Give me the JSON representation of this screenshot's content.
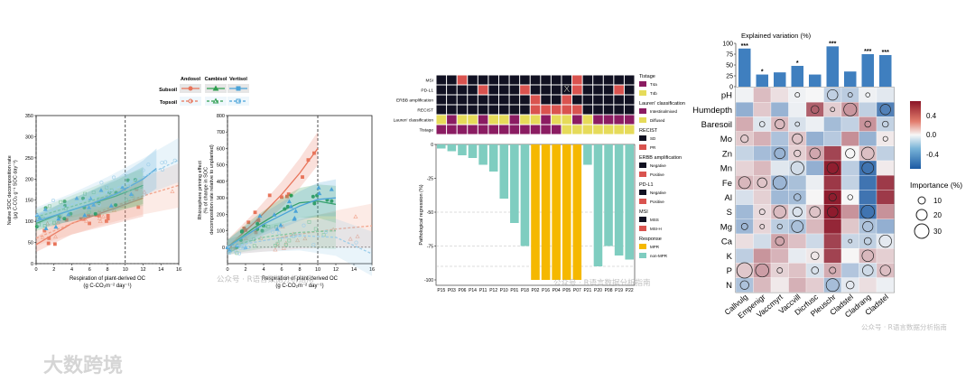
{
  "watermarks": {
    "wechat": "公众号 · R语言数据分析指南",
    "brand": "大数跨境"
  },
  "chart_data": [
    {
      "type": "scatter",
      "id": "soc_decomposition",
      "ylabel_lines": [
        "Native SOC decomposition rate",
        "(μg C-CO₂ g⁻¹ SOC day⁻¹)"
      ],
      "xlabel_lines": [
        "Respiration of plant-derived OC",
        "(g C-CO₂m⁻² day⁻¹)"
      ],
      "xlim": [
        0,
        16
      ],
      "ylim": [
        0,
        350
      ],
      "xticks": [
        "0",
        "2",
        "4",
        "6",
        "8",
        "10",
        "12",
        "14",
        "16"
      ],
      "yticks": [
        "0",
        "50",
        "100",
        "150",
        "200",
        "250",
        "300",
        "350"
      ],
      "vlines": [
        0,
        10
      ],
      "legend": {
        "columns": [
          "Andosol",
          "Cambisol",
          "Vertisol"
        ],
        "rows": [
          "Subsoil",
          "Topsoil"
        ],
        "colors": [
          "#e8745a",
          "#2e9e4f",
          "#4aa3d8"
        ]
      },
      "series": [
        {
          "name": "Andosol Subsoil",
          "color": "#e8745a",
          "fit": [
            [
              0,
              45
            ],
            [
              2,
              70
            ],
            [
              4,
              95
            ],
            [
              6,
              110
            ],
            [
              8,
              125
            ],
            [
              10,
              140
            ],
            [
              12,
              155
            ]
          ]
        },
        {
          "name": "Andosol Topsoil",
          "color": "#f2a48c",
          "fit": [
            [
              0,
              60
            ],
            [
              4,
              95
            ],
            [
              8,
              130
            ],
            [
              12,
              160
            ],
            [
              16,
              185
            ]
          ]
        },
        {
          "name": "Cambisol Subsoil",
          "color": "#2e9e4f",
          "fit": [
            [
              0,
              95
            ],
            [
              3,
              120
            ],
            [
              6,
              140
            ],
            [
              9,
              160
            ],
            [
              12,
              185
            ]
          ]
        },
        {
          "name": "Cambisol Topsoil",
          "color": "#7cc48a",
          "fit": [
            [
              0,
              110
            ],
            [
              4,
              135
            ],
            [
              8,
              160
            ],
            [
              12,
              180
            ]
          ]
        },
        {
          "name": "Vertisol Subsoil",
          "color": "#4aa3d8",
          "fit": [
            [
              0,
              100
            ],
            [
              3,
              120
            ],
            [
              6,
              140
            ],
            [
              9,
              165
            ],
            [
              12,
              200
            ],
            [
              13.5,
              225
            ]
          ]
        },
        {
          "name": "Vertisol Topsoil",
          "color": "#9ccde9",
          "fit": [
            [
              0,
              115
            ],
            [
              4,
              140
            ],
            [
              8,
              170
            ],
            [
              12,
              205
            ],
            [
              16,
              245
            ]
          ]
        }
      ]
    },
    {
      "type": "scatter",
      "id": "rhizosphere_priming",
      "ylabel_lines": [
        "Rhizosphere priming effect",
        "(% of change in SOC",
        "decomposition rate relative to unplanted)"
      ],
      "xlabel_lines": [
        "Respiration of plant-derived OC",
        "(g C-CO₂m⁻² day⁻¹)"
      ],
      "xlim": [
        0,
        16
      ],
      "ylim": [
        -100,
        800
      ],
      "xticks": [
        "0",
        "2",
        "4",
        "6",
        "8",
        "10",
        "12",
        "14",
        "16"
      ],
      "yticks": [
        "0",
        "100",
        "200",
        "300",
        "400",
        "500",
        "600",
        "700",
        "800"
      ],
      "vlines": [
        0,
        10
      ],
      "series": [
        {
          "name": "Andosol Subsoil",
          "color": "#e8745a",
          "fit": [
            [
              0,
              0
            ],
            [
              3,
              150
            ],
            [
              6,
              320
            ],
            [
              8,
              450
            ],
            [
              10,
              600
            ]
          ]
        },
        {
          "name": "Andosol Topsoil",
          "color": "#f2a48c",
          "fit": [
            [
              0,
              0
            ],
            [
              4,
              40
            ],
            [
              8,
              80
            ],
            [
              12,
              110
            ],
            [
              16,
              130
            ]
          ]
        },
        {
          "name": "Cambisol Subsoil",
          "color": "#2e9e4f",
          "fit": [
            [
              0,
              0
            ],
            [
              3,
              120
            ],
            [
              6,
              220
            ],
            [
              8,
              270
            ],
            [
              10,
              280
            ],
            [
              12,
              260
            ]
          ]
        },
        {
          "name": "Cambisol Topsoil",
          "color": "#7cc48a",
          "fit": [
            [
              0,
              0
            ],
            [
              4,
              60
            ],
            [
              8,
              90
            ],
            [
              12,
              100
            ]
          ]
        },
        {
          "name": "Vertisol Subsoil",
          "color": "#4aa3d8",
          "fit": [
            [
              0,
              0
            ],
            [
              4,
              140
            ],
            [
              8,
              250
            ],
            [
              10,
              290
            ],
            [
              12,
              300
            ]
          ]
        },
        {
          "name": "Vertisol Topsoil",
          "color": "#9ccde9",
          "fit": [
            [
              0,
              0
            ],
            [
              4,
              40
            ],
            [
              8,
              70
            ],
            [
              12,
              60
            ],
            [
              16,
              -40
            ]
          ]
        }
      ]
    },
    {
      "type": "bar",
      "id": "pathological_regression",
      "ylabel": "Pathological regression (%)",
      "categories": [
        "P15",
        "P03",
        "P06",
        "P14",
        "P11",
        "P12",
        "P10",
        "P01",
        "P18",
        "P02",
        "P16",
        "P04",
        "P05",
        "P07",
        "P21",
        "P20",
        "P08",
        "P19",
        "P22"
      ],
      "values": [
        -3,
        -5,
        -8,
        -10,
        -15,
        -20,
        -40,
        -58,
        -75,
        -100,
        -100,
        -100,
        -100,
        -100,
        -15,
        -90,
        -75,
        -82,
        -85
      ],
      "response": [
        "SD",
        "SD",
        "SD",
        "SD",
        "SD",
        "SD",
        "SD",
        "SD",
        "SD",
        "MPR",
        "MPR",
        "MPR",
        "MPR",
        "MPR",
        "SD",
        "SD",
        "SD",
        "SD",
        "SD"
      ],
      "ylim": [
        -100,
        0
      ],
      "yticks": [
        "0",
        "-25",
        "-50",
        "-75",
        "-100"
      ],
      "hlines": [
        -50,
        -75,
        -90
      ],
      "heatmap_rows": [
        "MSI",
        "PD-L1",
        "ERBB amplification",
        "RECIST",
        "Lauren' classification",
        "Tistage"
      ],
      "marker_text": "X",
      "legend": [
        {
          "title": "Tistage",
          "items": [
            {
              "label": "T4a",
              "color": "#8b1c62"
            },
            {
              "label": "T4b",
              "color": "#e6db5a"
            }
          ]
        },
        {
          "title": "Lauren' classification",
          "items": [
            {
              "label": "Intestinalmixed",
              "color": "#8b1c62"
            },
            {
              "label": "Diffused",
              "color": "#e6db5a"
            }
          ]
        },
        {
          "title": "RECIST",
          "items": [
            {
              "label": "SD",
              "color": "#111122"
            },
            {
              "label": "PR",
              "color": "#d9534f"
            }
          ]
        },
        {
          "title": "ERBB amplification",
          "items": [
            {
              "label": "Negative",
              "color": "#111122"
            },
            {
              "label": "Positive",
              "color": "#d9534f"
            }
          ]
        },
        {
          "title": "PD-L1",
          "items": [
            {
              "label": "Negative",
              "color": "#111122"
            },
            {
              "label": "Positive",
              "color": "#d9534f"
            }
          ]
        },
        {
          "title": "MSI",
          "items": [
            {
              "label": "MSS",
              "color": "#111122"
            },
            {
              "label": "MSI-H",
              "color": "#d9534f"
            }
          ]
        },
        {
          "title": "Response",
          "items": [
            {
              "label": "MPR",
              "color": "#f5b800"
            },
            {
              "label": "non-MPR",
              "color": "#7fcdc0"
            }
          ]
        }
      ],
      "colors": {
        "mpr": "#f5b800",
        "non_mpr": "#7fcdc0",
        "dark": "#111122",
        "red": "#d9534f",
        "purple": "#8b1c62",
        "yellow": "#e6db5a"
      }
    },
    {
      "type": "heatmap",
      "id": "explained_variation",
      "title": "Explained variation (%)",
      "columns": [
        "Callvulg",
        "Empenigr",
        "Vaccmyrt",
        "Vaccvill",
        "Dicrfusc",
        "Pleuschr",
        "Cladstel",
        "Cladrang",
        "Cladstel"
      ],
      "bar_values": [
        88,
        28,
        33,
        48,
        28,
        93,
        35,
        75,
        73
      ],
      "bar_signif": [
        "***",
        "*",
        "",
        "*",
        "",
        "***",
        "",
        "***",
        "***"
      ],
      "bar_yticks": [
        "0",
        "25",
        "50",
        "75",
        "100"
      ],
      "rows": [
        "pH",
        "Humdepth",
        "Baresoil",
        "Mo",
        "Zn",
        "Mn",
        "Fe",
        "Al",
        "S",
        "Mg",
        "Ca",
        "K",
        "P",
        "N"
      ],
      "legend": {
        "ticks": [
          "0.4",
          "0.0",
          "-0.4"
        ],
        "importance_title": "Importance (%)",
        "importance_values": [
          "10",
          "20",
          "30"
        ]
      }
    }
  ]
}
